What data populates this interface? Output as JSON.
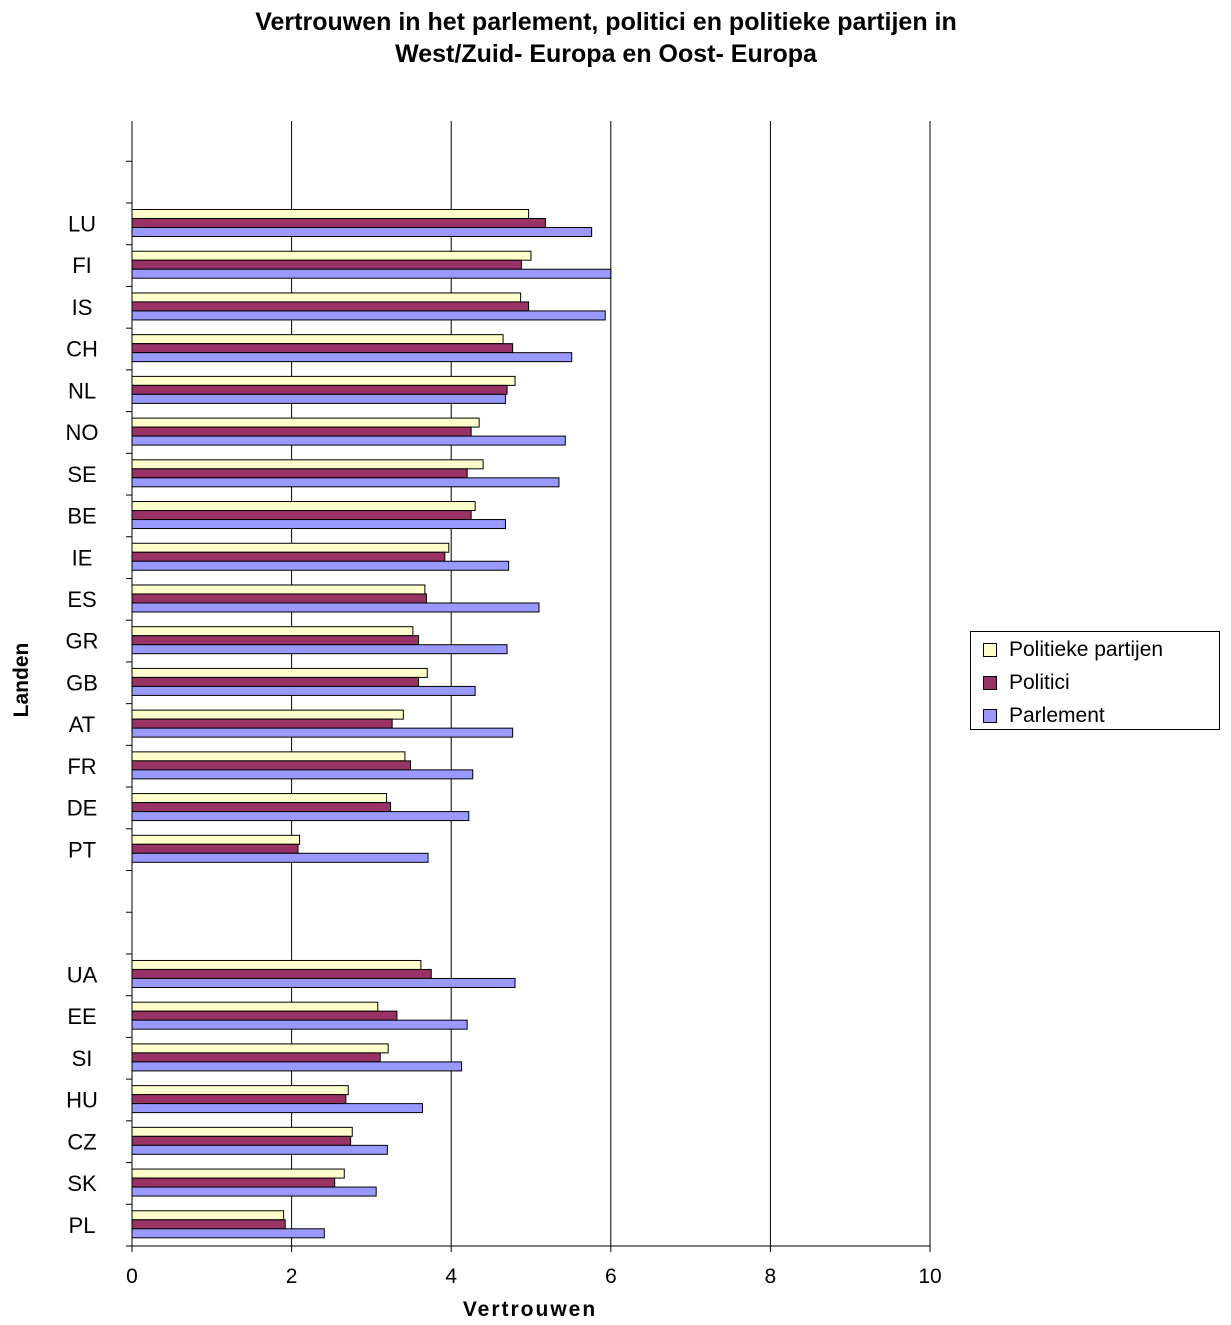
{
  "chart_data": {
    "type": "bar",
    "orientation": "horizontal",
    "title": [
      "Vertrouwen in het parlement, politici en politieke partijen in",
      "West/Zuid- Europa en Oost- Europa"
    ],
    "xlabel": "Vertrouwen",
    "ylabel": "Landen",
    "xlim": [
      0,
      10
    ],
    "xticks": [
      "0",
      "2",
      "4",
      "6",
      "8",
      "10"
    ],
    "grid": "vertical",
    "legend_position": "right",
    "categories": [
      "LU",
      "FI",
      "IS",
      "CH",
      "NL",
      "NO",
      "SE",
      "BE",
      "IE",
      "ES",
      "GR",
      "GB",
      "AT",
      "FR",
      "DE",
      "PT",
      "",
      "",
      "UA",
      "EE",
      "SI",
      "HU",
      "CZ",
      "SK",
      "PL"
    ],
    "series": [
      {
        "name": "Politieke partijen",
        "color": "#FFFFCC",
        "values": [
          4.97,
          5.0,
          4.87,
          4.65,
          4.8,
          4.35,
          4.4,
          4.3,
          3.97,
          3.67,
          3.52,
          3.7,
          3.4,
          3.42,
          3.19,
          2.1,
          null,
          null,
          3.62,
          3.08,
          3.21,
          2.71,
          2.76,
          2.66,
          1.9
        ]
      },
      {
        "name": "Politici",
        "color": "#993366",
        "values": [
          5.18,
          4.88,
          4.97,
          4.77,
          4.7,
          4.25,
          4.2,
          4.25,
          3.92,
          3.69,
          3.59,
          3.59,
          3.26,
          3.49,
          3.24,
          2.08,
          null,
          null,
          3.75,
          3.32,
          3.11,
          2.68,
          2.74,
          2.54,
          1.92
        ]
      },
      {
        "name": "Parlement",
        "color": "#9999FF",
        "values": [
          5.76,
          6.0,
          5.93,
          5.51,
          4.68,
          5.43,
          5.35,
          4.68,
          4.72,
          5.1,
          4.7,
          4.3,
          4.77,
          4.27,
          4.22,
          3.71,
          null,
          null,
          4.8,
          4.2,
          4.13,
          3.64,
          3.2,
          3.06,
          2.41
        ]
      }
    ]
  }
}
